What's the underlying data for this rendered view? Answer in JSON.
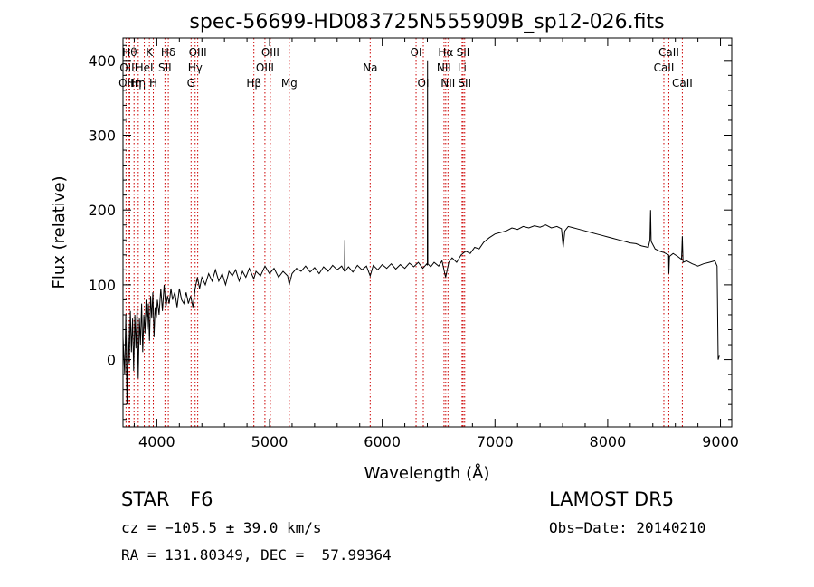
{
  "chart_data": {
    "type": "line",
    "title": "spec-56699-HD083725N555909B_sp12-026.fits",
    "xlabel": "Wavelength (Å)",
    "ylabel": "Flux (relative)",
    "xlim": [
      3700,
      9100
    ],
    "ylim": [
      -90,
      430
    ],
    "xticks": [
      4000,
      5000,
      6000,
      7000,
      8000,
      9000
    ],
    "yticks": [
      0,
      100,
      200,
      300,
      400
    ],
    "grid": false,
    "series": [
      {
        "values": [
          [
            3700,
            30
          ],
          [
            3715,
            -20
          ],
          [
            3725,
            60
          ],
          [
            3735,
            -60
          ],
          [
            3745,
            50
          ],
          [
            3755,
            -5
          ],
          [
            3765,
            65
          ],
          [
            3775,
            10
          ],
          [
            3785,
            55
          ],
          [
            3795,
            -15
          ],
          [
            3805,
            60
          ],
          [
            3815,
            15
          ],
          [
            3825,
            70
          ],
          [
            3835,
            -25
          ],
          [
            3845,
            55
          ],
          [
            3855,
            20
          ],
          [
            3865,
            75
          ],
          [
            3875,
            10
          ],
          [
            3885,
            60
          ],
          [
            3895,
            35
          ],
          [
            3905,
            80
          ],
          [
            3915,
            40
          ],
          [
            3925,
            75
          ],
          [
            3935,
            25
          ],
          [
            3945,
            85
          ],
          [
            3955,
            55
          ],
          [
            3965,
            90
          ],
          [
            3975,
            30
          ],
          [
            3985,
            70
          ],
          [
            3995,
            55
          ],
          [
            4005,
            80
          ],
          [
            4020,
            60
          ],
          [
            4035,
            95
          ],
          [
            4050,
            65
          ],
          [
            4065,
            100
          ],
          [
            4080,
            70
          ],
          [
            4095,
            85
          ],
          [
            4110,
            75
          ],
          [
            4125,
            95
          ],
          [
            4140,
            80
          ],
          [
            4160,
            90
          ],
          [
            4180,
            70
          ],
          [
            4200,
            95
          ],
          [
            4220,
            80
          ],
          [
            4240,
            75
          ],
          [
            4260,
            90
          ],
          [
            4280,
            75
          ],
          [
            4300,
            85
          ],
          [
            4320,
            70
          ],
          [
            4340,
            95
          ],
          [
            4360,
            110
          ],
          [
            4380,
            95
          ],
          [
            4400,
            110
          ],
          [
            4430,
            100
          ],
          [
            4460,
            115
          ],
          [
            4490,
            105
          ],
          [
            4520,
            120
          ],
          [
            4550,
            105
          ],
          [
            4580,
            115
          ],
          [
            4610,
            100
          ],
          [
            4640,
            118
          ],
          [
            4670,
            112
          ],
          [
            4700,
            120
          ],
          [
            4730,
            105
          ],
          [
            4760,
            118
          ],
          [
            4790,
            110
          ],
          [
            4820,
            122
          ],
          [
            4860,
            108
          ],
          [
            4880,
            118
          ],
          [
            4920,
            112
          ],
          [
            4960,
            125
          ],
          [
            5000,
            115
          ],
          [
            5040,
            122
          ],
          [
            5080,
            110
          ],
          [
            5120,
            118
          ],
          [
            5160,
            112
          ],
          [
            5175,
            100
          ],
          [
            5200,
            115
          ],
          [
            5240,
            122
          ],
          [
            5280,
            118
          ],
          [
            5320,
            125
          ],
          [
            5360,
            117
          ],
          [
            5400,
            123
          ],
          [
            5440,
            115
          ],
          [
            5480,
            124
          ],
          [
            5520,
            118
          ],
          [
            5560,
            126
          ],
          [
            5600,
            120
          ],
          [
            5640,
            125
          ],
          [
            5665,
            118
          ],
          [
            5668,
            160
          ],
          [
            5671,
            118
          ],
          [
            5700,
            124
          ],
          [
            5740,
            117
          ],
          [
            5780,
            126
          ],
          [
            5820,
            120
          ],
          [
            5860,
            125
          ],
          [
            5893,
            112
          ],
          [
            5920,
            126
          ],
          [
            5960,
            120
          ],
          [
            6000,
            127
          ],
          [
            6040,
            122
          ],
          [
            6080,
            128
          ],
          [
            6120,
            121
          ],
          [
            6160,
            127
          ],
          [
            6200,
            122
          ],
          [
            6240,
            129
          ],
          [
            6280,
            124
          ],
          [
            6320,
            130
          ],
          [
            6360,
            122
          ],
          [
            6395,
            128
          ],
          [
            6400,
            126
          ],
          [
            6402,
            400
          ],
          [
            6404,
            128
          ],
          [
            6430,
            124
          ],
          [
            6460,
            130
          ],
          [
            6500,
            125
          ],
          [
            6530,
            132
          ],
          [
            6562,
            110
          ],
          [
            6590,
            130
          ],
          [
            6620,
            136
          ],
          [
            6660,
            130
          ],
          [
            6700,
            140
          ],
          [
            6740,
            145
          ],
          [
            6780,
            142
          ],
          [
            6820,
            150
          ],
          [
            6860,
            148
          ],
          [
            6900,
            157
          ],
          [
            6950,
            163
          ],
          [
            7000,
            168
          ],
          [
            7050,
            170
          ],
          [
            7100,
            172
          ],
          [
            7150,
            176
          ],
          [
            7200,
            174
          ],
          [
            7250,
            178
          ],
          [
            7300,
            176
          ],
          [
            7350,
            179
          ],
          [
            7400,
            177
          ],
          [
            7450,
            180
          ],
          [
            7500,
            176
          ],
          [
            7550,
            178
          ],
          [
            7590,
            175
          ],
          [
            7605,
            150
          ],
          [
            7620,
            172
          ],
          [
            7650,
            178
          ],
          [
            7700,
            176
          ],
          [
            7750,
            174
          ],
          [
            7800,
            172
          ],
          [
            7850,
            170
          ],
          [
            7900,
            168
          ],
          [
            7950,
            166
          ],
          [
            8000,
            164
          ],
          [
            8050,
            162
          ],
          [
            8100,
            160
          ],
          [
            8150,
            158
          ],
          [
            8200,
            156
          ],
          [
            8250,
            155
          ],
          [
            8300,
            152
          ],
          [
            8360,
            150
          ],
          [
            8375,
            160
          ],
          [
            8380,
            200
          ],
          [
            8385,
            158
          ],
          [
            8420,
            148
          ],
          [
            8460,
            145
          ],
          [
            8500,
            143
          ],
          [
            8540,
            140
          ],
          [
            8542,
            115
          ],
          [
            8548,
            138
          ],
          [
            8580,
            142
          ],
          [
            8620,
            138
          ],
          [
            8655,
            134
          ],
          [
            8662,
            165
          ],
          [
            8668,
            130
          ],
          [
            8700,
            132
          ],
          [
            8750,
            128
          ],
          [
            8800,
            125
          ],
          [
            8850,
            128
          ],
          [
            8900,
            130
          ],
          [
            8950,
            132
          ],
          [
            8970,
            125
          ],
          [
            8980,
            0
          ],
          [
            8990,
            5
          ]
        ]
      }
    ],
    "lines": [
      {
        "x": 3727,
        "label": "OII",
        "row": 2
      },
      {
        "x": 3750,
        "label": "OIII",
        "row": 1
      },
      {
        "x": 3760,
        "label": "Hθ",
        "row": 0
      },
      {
        "x": 3798,
        "label": "Hη",
        "row": 2
      },
      {
        "x": 3835,
        "label": "Hη",
        "row": 2
      },
      {
        "x": 3889,
        "label": "HeI",
        "row": 1
      },
      {
        "x": 3934,
        "label": "K",
        "row": 0
      },
      {
        "x": 3969,
        "label": "H",
        "row": 2
      },
      {
        "x": 4072,
        "label": "SII",
        "row": 1
      },
      {
        "x": 4102,
        "label": "Hδ",
        "row": 0
      },
      {
        "x": 4304,
        "label": "G",
        "row": 2
      },
      {
        "x": 4340,
        "label": "Hγ",
        "row": 1
      },
      {
        "x": 4363,
        "label": "OIII",
        "row": 0
      },
      {
        "x": 4861,
        "label": "Hβ",
        "row": 2
      },
      {
        "x": 4959,
        "label": "OIII",
        "row": 1
      },
      {
        "x": 5007,
        "label": "OIII",
        "row": 0
      },
      {
        "x": 5175,
        "label": "Mg",
        "row": 2
      },
      {
        "x": 5893,
        "label": "Na",
        "row": 1
      },
      {
        "x": 6300,
        "label": "OI",
        "row": 0
      },
      {
        "x": 6364,
        "label": "OI",
        "row": 2
      },
      {
        "x": 6548,
        "label": "NII",
        "row": 1
      },
      {
        "x": 6563,
        "label": "Hα",
        "row": 0
      },
      {
        "x": 6583,
        "label": "NII",
        "row": 2
      },
      {
        "x": 6708,
        "label": "Li",
        "row": 1
      },
      {
        "x": 6717,
        "label": "SII",
        "row": 0
      },
      {
        "x": 6731,
        "label": "SII",
        "row": 2
      },
      {
        "x": 8498,
        "label": "CaII",
        "row": 1
      },
      {
        "x": 8542,
        "label": "CaII",
        "row": 0
      },
      {
        "x": 8662,
        "label": "CaII",
        "row": 2
      }
    ]
  },
  "footer": {
    "object_class": "STAR",
    "subclass": "F6",
    "survey": "LAMOST DR5",
    "cz": "cz = −105.5 ± 39.0 km/s",
    "obs_date": "Obs−Date: 20140210",
    "coords": "RA = 131.80349, DEC =  57.99364"
  },
  "colors": {
    "spectrum": "#000000",
    "line_marker": "#cc0000",
    "text": "#000000"
  }
}
